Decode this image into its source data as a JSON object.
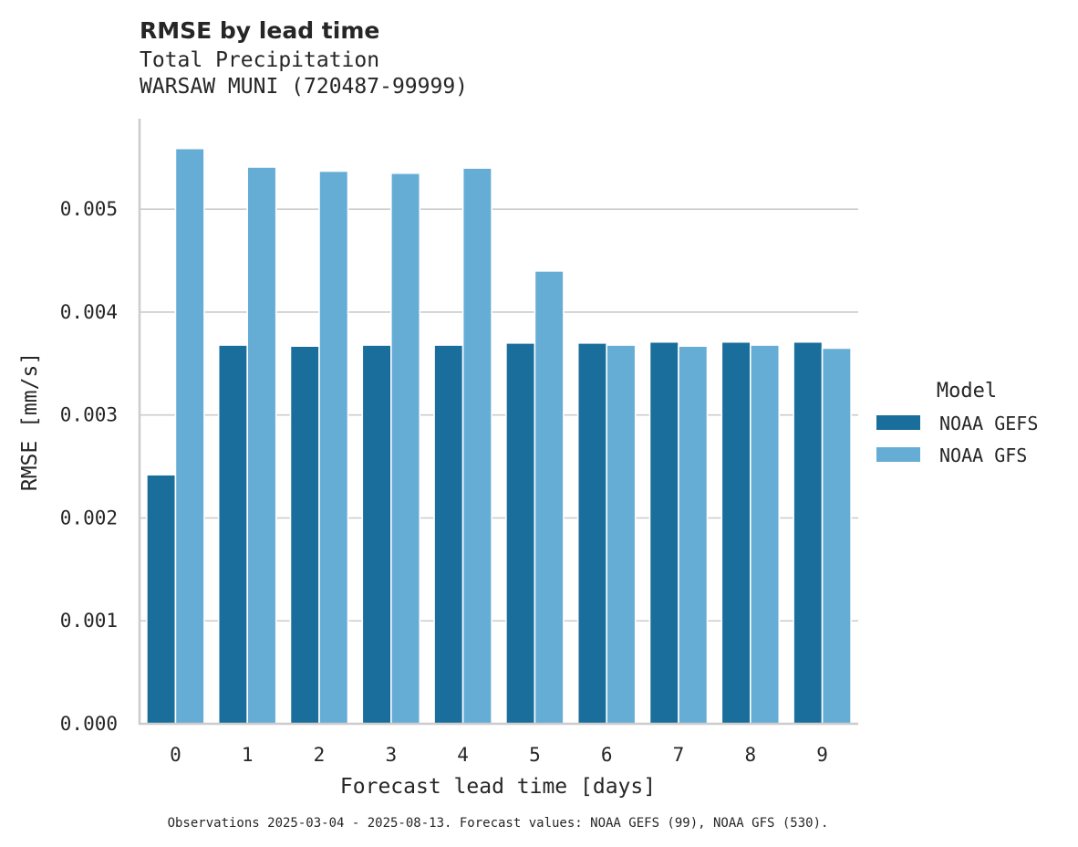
{
  "chart_data": {
    "type": "bar",
    "title": "RMSE by lead time",
    "subtitle_lines": [
      "Total Precipitation",
      "WARSAW MUNI (720487-99999)"
    ],
    "xlabel": "Forecast lead time [days]",
    "ylabel": "RMSE [mm/s]",
    "categories": [
      "0",
      "1",
      "2",
      "3",
      "4",
      "5",
      "6",
      "7",
      "8",
      "9"
    ],
    "series": [
      {
        "name": "NOAA GEFS",
        "color": "#1a6e9c",
        "values": [
          0.00242,
          0.00368,
          0.00367,
          0.00368,
          0.00368,
          0.0037,
          0.0037,
          0.00371,
          0.00371,
          0.00371
        ]
      },
      {
        "name": "NOAA GFS",
        "color": "#66add6",
        "values": [
          0.00559,
          0.00541,
          0.00537,
          0.00535,
          0.0054,
          0.0044,
          0.00368,
          0.00367,
          0.00368,
          0.00365
        ]
      }
    ],
    "yticks": [
      0.0,
      0.001,
      0.002,
      0.003,
      0.004,
      0.005
    ],
    "ytick_labels": [
      "0.000",
      "0.001",
      "0.002",
      "0.003",
      "0.004",
      "0.005"
    ],
    "ylim": [
      0,
      0.00588
    ],
    "grid": "horizontal",
    "legend_title": "Model",
    "legend_placement": "right",
    "footnote": "Observations 2025-03-04 - 2025-08-13. Forecast values: NOAA GEFS (99), NOAA GFS (530)."
  }
}
